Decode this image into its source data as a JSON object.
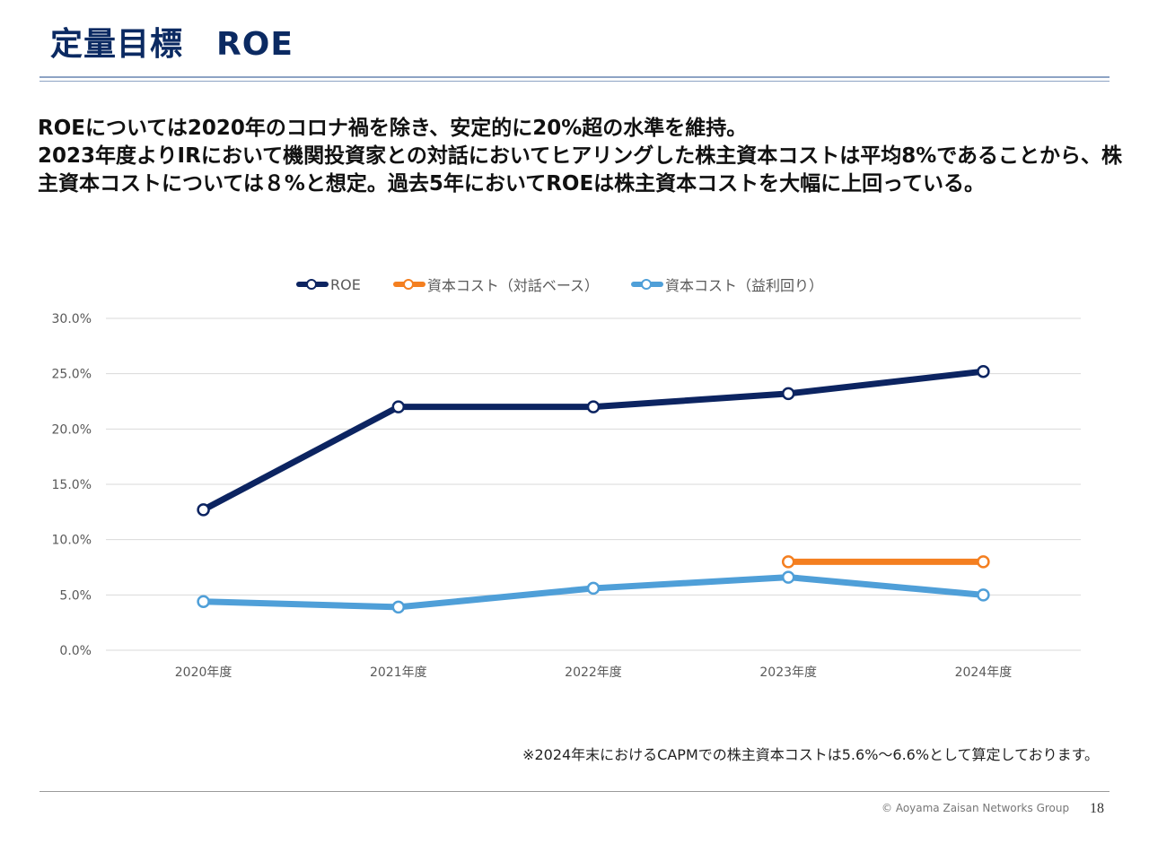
{
  "slide": {
    "title": "定量目標　ROE",
    "body_lines": [
      "ROEについては2020年のコロナ禍を除き、安定的に20%超の水準を維持。",
      "2023年度よりIRにおいて機関投資家との対話においてヒアリングした株主資本コストは平均8%であることから、株主資本コストについては８%と想定。過去5年においてROEは株主資本コストを大幅に上回っている。"
    ],
    "note": "※2024年末におけるCAPMでの株主資本コストは5.6%～6.6%として算定しております。",
    "copyright": "© Aoyama Zaisan Networks Group",
    "page_number": "18"
  },
  "chart_data": {
    "type": "line",
    "categories": [
      "2020年度",
      "2021年度",
      "2022年度",
      "2023年度",
      "2024年度"
    ],
    "ylim": [
      0,
      30
    ],
    "yticks": [
      "0.0%",
      "5.0%",
      "10.0%",
      "15.0%",
      "20.0%",
      "25.0%",
      "30.0%"
    ],
    "grid": true,
    "legend_position": "top",
    "series": [
      {
        "name": "ROE",
        "color": "#0c2461",
        "values": [
          12.7,
          22.0,
          22.0,
          23.2,
          25.2
        ]
      },
      {
        "name": "資本コスト（対話ベース）",
        "color": "#f47f20",
        "values": [
          null,
          null,
          null,
          8.0,
          8.0
        ]
      },
      {
        "name": "資本コスト（益利回り）",
        "color": "#4f9fd8",
        "values": [
          4.4,
          3.9,
          5.6,
          6.6,
          5.0
        ]
      }
    ]
  }
}
